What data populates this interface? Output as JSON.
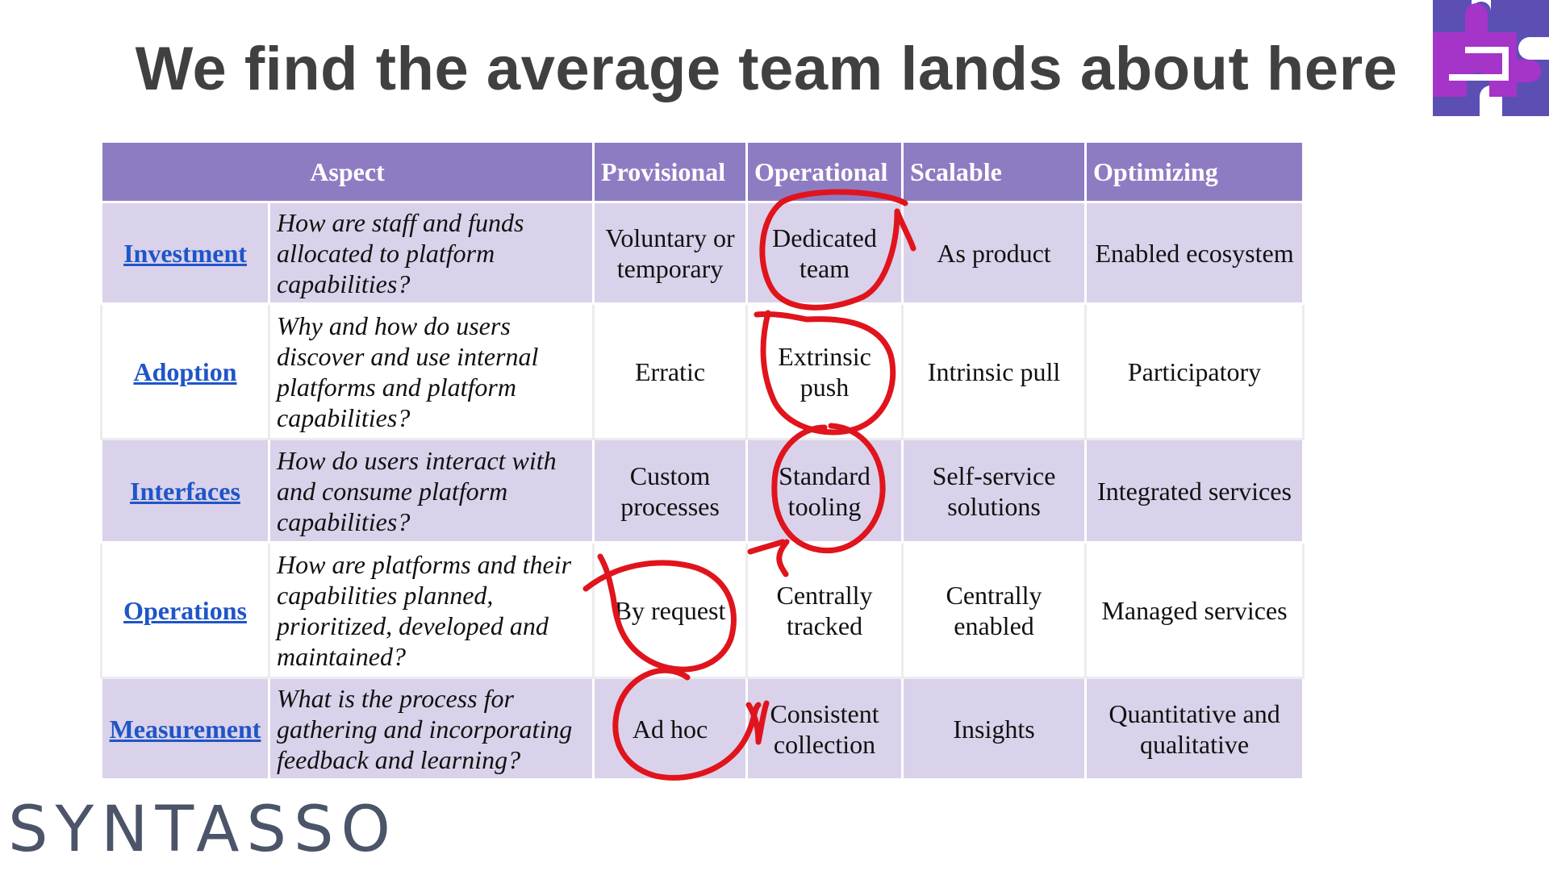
{
  "slide": {
    "title": "We find the average team lands about here",
    "brand": "SYNTASSO",
    "accent_color": "#8e7cc3",
    "annotation_color": "#e0141c",
    "logo_icon": "puzzle-pieces-icon"
  },
  "table": {
    "headers": [
      "Aspect",
      "Provisional",
      "Operational",
      "Scalable",
      "Optimizing"
    ],
    "rows": [
      {
        "aspect": "Investment",
        "question": "How are staff and funds allocated to platform capabilities?",
        "provisional": "Voluntary or temporary",
        "operational": "Dedicated team",
        "scalable": "As product",
        "optimizing": "Enabled ecosystem"
      },
      {
        "aspect": "Adoption",
        "question": "Why and how do users discover and use internal platforms and platform capabilities?",
        "provisional": "Erratic",
        "operational": "Extrinsic push",
        "scalable": "Intrinsic pull",
        "optimizing": "Participatory"
      },
      {
        "aspect": "Interfaces",
        "question": "How do users interact with and consume platform capabilities?",
        "provisional": "Custom processes",
        "operational": "Standard tooling",
        "scalable": "Self-service solutions",
        "optimizing": "Integrated services"
      },
      {
        "aspect": "Operations",
        "question": "How are platforms and their capabilities planned, prioritized, developed and maintained?",
        "provisional": "By request",
        "operational": "Centrally tracked",
        "scalable": "Centrally enabled",
        "optimizing": "Managed services"
      },
      {
        "aspect": "Measurement",
        "question": "What is the process for gathering and incorporating feedback and learning?",
        "provisional": "Ad hoc",
        "operational": "Consistent collection",
        "scalable": "Insights",
        "optimizing": "Quantitative and qualitative"
      }
    ]
  }
}
